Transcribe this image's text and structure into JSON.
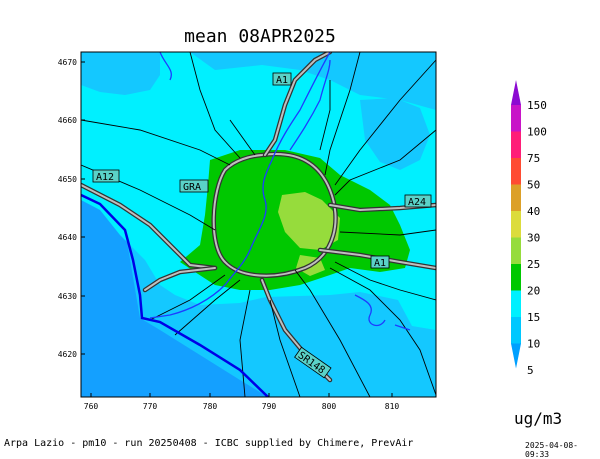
{
  "title": "mean 08APR2025",
  "units": "ug/m3",
  "footer": {
    "left": "Arpa Lazio - pm10 - run 20250408 - ICBC supplied by Chimere, PrevAir",
    "right": "2025-04-08-09:33"
  },
  "map": {
    "x_ticks": [
      "760",
      "770",
      "780",
      "790",
      "800",
      "810"
    ],
    "y_ticks": [
      "4670",
      "4660",
      "4650",
      "4640",
      "4630",
      "4620"
    ],
    "road_labels": [
      "A1",
      "GRA",
      "A12",
      "A24",
      "A1",
      "SR148"
    ]
  },
  "colorbar": {
    "levels": [
      "5",
      "10",
      "15",
      "20",
      "25",
      "30",
      "40",
      "50",
      "75",
      "100",
      "150"
    ],
    "colors": [
      "#00a0ff",
      "#00c8ff",
      "#00f0ff",
      "#00c800",
      "#96dc3c",
      "#dcdc3c",
      "#dca028",
      "#ff4b32",
      "#ff1e78",
      "#c814c8",
      "#8c0ad2"
    ]
  },
  "fill_colors": {
    "sea": "#14a0ff",
    "c10_15": "#14c8ff",
    "c15_20": "#00f0ff",
    "c20_25": "#00c800",
    "c25_30": "#96dc3c",
    "coast": "#0000e6",
    "river": "#1e3cff"
  }
}
